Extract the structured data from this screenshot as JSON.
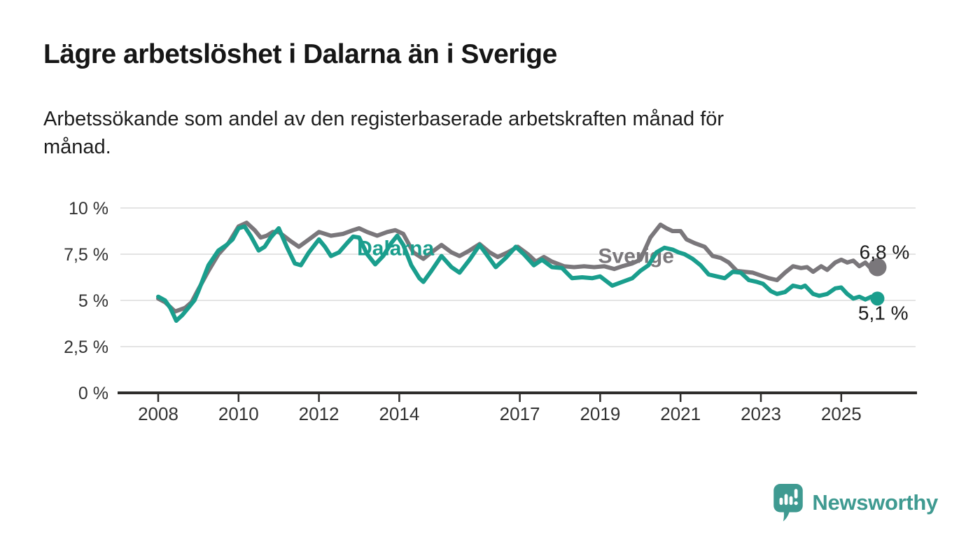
{
  "header": {
    "title": "Lägre arbetslöshet i Dalarna än i Sverige",
    "subtitle": "Arbetssökande som andel av den registerbaserade arbetskraften månad för\nmånad."
  },
  "footer": {
    "brand": "Newsworthy"
  },
  "colors": {
    "dalarna": "#1a9e8d",
    "sverige": "#7a777b",
    "gridline": "#dcdcdc",
    "axis": "#2e2d2b",
    "tick_text": "#333333",
    "annotation_text": "#1a1a1a",
    "logo": "#3f9a91"
  },
  "chart_data": {
    "type": "line",
    "title": "Lägre arbetslöshet i Dalarna än i Sverige",
    "xlabel": "",
    "ylabel": "Arbetssökande som andel av den registerbaserade arbetskraften",
    "unit": "%",
    "grid": true,
    "x_domain": [
      2008,
      2026.1
    ],
    "ylim": [
      0,
      10.5
    ],
    "x_ticks": [
      2008,
      2010,
      2012,
      2014,
      2017,
      2019,
      2021,
      2023,
      2025
    ],
    "x_tick_labels": [
      "2008",
      "2010",
      "2012",
      "2014",
      "2017",
      "2019",
      "2021",
      "2023",
      "2025"
    ],
    "y_ticks": [
      0,
      2.5,
      5,
      7.5,
      10
    ],
    "y_tick_labels": [
      "0 %",
      "2,5 %",
      "5 %",
      "7,5 %",
      "10 %"
    ],
    "series": [
      {
        "name": "Sverige",
        "color": "#7a777b",
        "label": {
          "text": "Sverige",
          "year": 2018.95,
          "value": 7.03,
          "anchor": "start"
        },
        "end_label": {
          "text": "6,8 %",
          "year": 2025.45,
          "value": 7.25,
          "anchor": "start"
        },
        "end_value": 6.8,
        "points": [
          [
            2008.0,
            5.1
          ],
          [
            2008.17,
            4.9
          ],
          [
            2008.42,
            4.4
          ],
          [
            2008.67,
            4.6
          ],
          [
            2008.83,
            4.9
          ],
          [
            2009.0,
            5.6
          ],
          [
            2009.25,
            6.6
          ],
          [
            2009.5,
            7.5
          ],
          [
            2009.75,
            8.1
          ],
          [
            2010.0,
            9.0
          ],
          [
            2010.2,
            9.2
          ],
          [
            2010.4,
            8.8
          ],
          [
            2010.55,
            8.4
          ],
          [
            2010.7,
            8.5
          ],
          [
            2010.85,
            8.7
          ],
          [
            2011.0,
            8.7
          ],
          [
            2011.3,
            8.2
          ],
          [
            2011.5,
            7.9
          ],
          [
            2011.75,
            8.3
          ],
          [
            2012.0,
            8.7
          ],
          [
            2012.3,
            8.5
          ],
          [
            2012.6,
            8.6
          ],
          [
            2012.85,
            8.8
          ],
          [
            2013.0,
            8.9
          ],
          [
            2013.2,
            8.7
          ],
          [
            2013.45,
            8.5
          ],
          [
            2013.7,
            8.7
          ],
          [
            2013.9,
            8.8
          ],
          [
            2014.1,
            8.6
          ],
          [
            2014.35,
            7.6
          ],
          [
            2014.6,
            7.25
          ],
          [
            2014.8,
            7.6
          ],
          [
            2015.05,
            8.0
          ],
          [
            2015.3,
            7.6
          ],
          [
            2015.5,
            7.4
          ],
          [
            2015.75,
            7.7
          ],
          [
            2016.0,
            8.05
          ],
          [
            2016.25,
            7.6
          ],
          [
            2016.45,
            7.35
          ],
          [
            2016.7,
            7.6
          ],
          [
            2016.95,
            7.9
          ],
          [
            2017.2,
            7.5
          ],
          [
            2017.4,
            7.1
          ],
          [
            2017.6,
            7.35
          ],
          [
            2017.8,
            7.1
          ],
          [
            2018.1,
            6.85
          ],
          [
            2018.35,
            6.8
          ],
          [
            2018.6,
            6.85
          ],
          [
            2018.85,
            6.8
          ],
          [
            2019.1,
            6.85
          ],
          [
            2019.35,
            6.7
          ],
          [
            2019.55,
            6.85
          ],
          [
            2019.8,
            7.0
          ],
          [
            2020.0,
            7.2
          ],
          [
            2020.25,
            8.4
          ],
          [
            2020.5,
            9.1
          ],
          [
            2020.65,
            8.9
          ],
          [
            2020.8,
            8.75
          ],
          [
            2021.0,
            8.75
          ],
          [
            2021.15,
            8.3
          ],
          [
            2021.35,
            8.1
          ],
          [
            2021.6,
            7.9
          ],
          [
            2021.8,
            7.4
          ],
          [
            2022.0,
            7.3
          ],
          [
            2022.2,
            7.05
          ],
          [
            2022.4,
            6.6
          ],
          [
            2022.6,
            6.55
          ],
          [
            2022.8,
            6.5
          ],
          [
            2023.0,
            6.35
          ],
          [
            2023.2,
            6.2
          ],
          [
            2023.4,
            6.1
          ],
          [
            2023.6,
            6.5
          ],
          [
            2023.8,
            6.85
          ],
          [
            2024.0,
            6.75
          ],
          [
            2024.15,
            6.8
          ],
          [
            2024.3,
            6.55
          ],
          [
            2024.5,
            6.85
          ],
          [
            2024.65,
            6.65
          ],
          [
            2024.85,
            7.05
          ],
          [
            2025.0,
            7.2
          ],
          [
            2025.15,
            7.05
          ],
          [
            2025.3,
            7.15
          ],
          [
            2025.45,
            6.85
          ],
          [
            2025.6,
            7.05
          ],
          [
            2025.75,
            6.7
          ],
          [
            2025.9,
            6.8
          ]
        ]
      },
      {
        "name": "Dalarna",
        "color": "#1a9e8d",
        "label": {
          "text": "Dalarna",
          "year": 2012.95,
          "value": 7.45,
          "anchor": "start"
        },
        "end_label": {
          "text": "5,1 %",
          "year": 2025.42,
          "value": 3.95,
          "anchor": "start"
        },
        "end_value": 5.1,
        "points": [
          [
            2008.0,
            5.2
          ],
          [
            2008.17,
            5.0
          ],
          [
            2008.3,
            4.6
          ],
          [
            2008.45,
            3.9
          ],
          [
            2008.6,
            4.2
          ],
          [
            2008.75,
            4.6
          ],
          [
            2008.9,
            5.0
          ],
          [
            2009.0,
            5.5
          ],
          [
            2009.25,
            6.9
          ],
          [
            2009.5,
            7.7
          ],
          [
            2009.7,
            8.0
          ],
          [
            2009.85,
            8.3
          ],
          [
            2010.0,
            8.9
          ],
          [
            2010.15,
            9.0
          ],
          [
            2010.3,
            8.5
          ],
          [
            2010.5,
            7.7
          ],
          [
            2010.65,
            7.9
          ],
          [
            2010.8,
            8.4
          ],
          [
            2011.0,
            8.9
          ],
          [
            2011.2,
            7.9
          ],
          [
            2011.4,
            7.0
          ],
          [
            2011.55,
            6.9
          ],
          [
            2011.75,
            7.6
          ],
          [
            2012.0,
            8.3
          ],
          [
            2012.15,
            7.9
          ],
          [
            2012.3,
            7.4
          ],
          [
            2012.5,
            7.6
          ],
          [
            2012.7,
            8.1
          ],
          [
            2012.85,
            8.45
          ],
          [
            2013.0,
            8.4
          ],
          [
            2013.2,
            7.5
          ],
          [
            2013.4,
            6.95
          ],
          [
            2013.6,
            7.4
          ],
          [
            2013.8,
            8.1
          ],
          [
            2013.95,
            8.5
          ],
          [
            2014.1,
            8.0
          ],
          [
            2014.3,
            6.9
          ],
          [
            2014.5,
            6.2
          ],
          [
            2014.6,
            6.0
          ],
          [
            2014.8,
            6.6
          ],
          [
            2015.05,
            7.4
          ],
          [
            2015.3,
            6.8
          ],
          [
            2015.5,
            6.5
          ],
          [
            2015.75,
            7.2
          ],
          [
            2016.0,
            8.0
          ],
          [
            2016.2,
            7.4
          ],
          [
            2016.4,
            6.8
          ],
          [
            2016.65,
            7.3
          ],
          [
            2016.9,
            7.9
          ],
          [
            2017.1,
            7.5
          ],
          [
            2017.35,
            6.9
          ],
          [
            2017.55,
            7.2
          ],
          [
            2017.8,
            6.8
          ],
          [
            2018.05,
            6.75
          ],
          [
            2018.3,
            6.2
          ],
          [
            2018.55,
            6.25
          ],
          [
            2018.8,
            6.2
          ],
          [
            2019.0,
            6.3
          ],
          [
            2019.3,
            5.8
          ],
          [
            2019.55,
            6.0
          ],
          [
            2019.8,
            6.2
          ],
          [
            2020.0,
            6.6
          ],
          [
            2020.2,
            6.9
          ],
          [
            2020.4,
            7.6
          ],
          [
            2020.6,
            7.85
          ],
          [
            2020.8,
            7.75
          ],
          [
            2020.95,
            7.6
          ],
          [
            2021.1,
            7.5
          ],
          [
            2021.3,
            7.25
          ],
          [
            2021.5,
            6.9
          ],
          [
            2021.7,
            6.4
          ],
          [
            2021.9,
            6.3
          ],
          [
            2022.1,
            6.2
          ],
          [
            2022.3,
            6.55
          ],
          [
            2022.5,
            6.5
          ],
          [
            2022.7,
            6.1
          ],
          [
            2022.9,
            6.0
          ],
          [
            2023.05,
            5.9
          ],
          [
            2023.25,
            5.5
          ],
          [
            2023.4,
            5.35
          ],
          [
            2023.6,
            5.45
          ],
          [
            2023.8,
            5.8
          ],
          [
            2024.0,
            5.7
          ],
          [
            2024.1,
            5.8
          ],
          [
            2024.3,
            5.35
          ],
          [
            2024.45,
            5.25
          ],
          [
            2024.65,
            5.35
          ],
          [
            2024.85,
            5.65
          ],
          [
            2025.0,
            5.7
          ],
          [
            2025.15,
            5.35
          ],
          [
            2025.3,
            5.1
          ],
          [
            2025.45,
            5.2
          ],
          [
            2025.6,
            5.05
          ],
          [
            2025.75,
            5.2
          ],
          [
            2025.9,
            5.1
          ]
        ]
      }
    ],
    "legend_position": "inline-labels"
  }
}
